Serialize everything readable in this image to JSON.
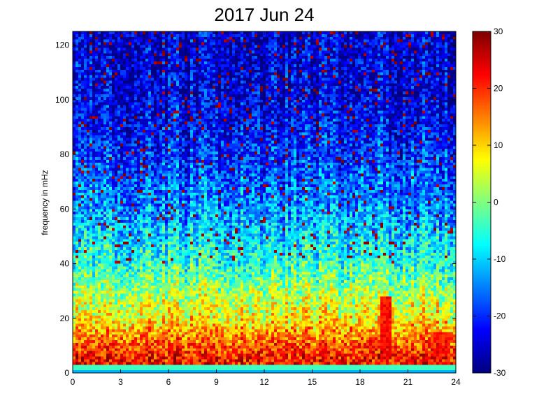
{
  "chart_data": {
    "type": "heatmap",
    "title": "2017 Jun 24",
    "xlabel": "",
    "ylabel": "frequency in mHz",
    "xlim": [
      0,
      24
    ],
    "ylim": [
      0,
      125
    ],
    "xticks": [
      "0",
      "3",
      "6",
      "9",
      "12",
      "15",
      "18",
      "21",
      "24"
    ],
    "yticks": [
      "0",
      "20",
      "40",
      "60",
      "80",
      "100",
      "120"
    ],
    "colorbar": {
      "range": [
        -30,
        30
      ],
      "ticks": [
        "30",
        "20",
        "10",
        "0",
        "-10",
        "-20",
        "-30"
      ],
      "colormap": "jet"
    },
    "grid": false,
    "intensity_profile": [
      {
        "frequency": 2,
        "value": 22
      },
      {
        "frequency": 5,
        "value": 22
      },
      {
        "frequency": 10,
        "value": 18
      },
      {
        "frequency": 20,
        "value": 8
      },
      {
        "frequency": 30,
        "value": 2
      },
      {
        "frequency": 40,
        "value": -5
      },
      {
        "frequency": 60,
        "value": -14
      },
      {
        "frequency": 80,
        "value": -20
      },
      {
        "frequency": 100,
        "value": -24
      },
      {
        "frequency": 120,
        "value": -25
      }
    ],
    "features": [
      {
        "x_range": [
          19.3,
          20.0
        ],
        "y_range": [
          5,
          28
        ],
        "value": 22
      },
      {
        "x_range": [
          22.5,
          23.6
        ],
        "y_range": [
          5,
          15
        ],
        "value": 20
      }
    ]
  }
}
